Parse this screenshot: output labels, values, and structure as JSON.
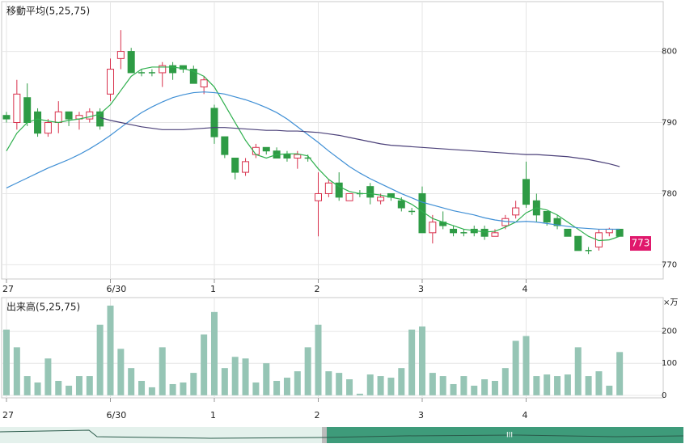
{
  "chart_data": [
    {
      "type": "candlestick",
      "title": "移動平均(5,25,75)",
      "categories": [
        "27",
        null,
        null,
        null,
        null,
        null,
        null,
        null,
        null,
        null,
        "6/30",
        null,
        null,
        null,
        null,
        null,
        null,
        null,
        null,
        null,
        "1",
        null,
        null,
        null,
        null,
        null,
        null,
        null,
        null,
        null,
        "2",
        null,
        null,
        null,
        null,
        null,
        null,
        null,
        null,
        null,
        "3",
        null,
        null,
        null,
        null,
        null,
        null,
        null,
        null,
        null,
        "4",
        null,
        null,
        null,
        null,
        null,
        null,
        null,
        null,
        null
      ],
      "open": [
        791,
        790,
        793.5,
        791.5,
        788.5,
        790,
        791.5,
        790.5,
        790.5,
        791.5,
        794,
        799,
        800,
        797,
        797,
        797,
        798,
        798,
        797.5,
        795,
        792,
        788,
        785,
        783,
        785.5,
        786.5,
        786,
        785.5,
        785,
        785,
        779,
        780,
        781.5,
        779,
        780,
        781,
        779,
        780,
        779,
        777.5,
        780,
        774.5,
        776,
        775,
        774.5,
        775,
        775,
        774,
        775.5,
        777,
        782,
        779,
        777.5,
        776.5,
        775,
        774,
        772,
        772.5,
        774.5,
        775
      ],
      "close": [
        790.5,
        794,
        790,
        788.5,
        790,
        791.5,
        790.5,
        791,
        791.5,
        789.5,
        797.5,
        800,
        797,
        797,
        797,
        798,
        797,
        797.5,
        795.5,
        796,
        788,
        785.5,
        783,
        784.5,
        786.5,
        786,
        785,
        785,
        785.5,
        785,
        780,
        781.5,
        779.5,
        780,
        780,
        779.5,
        779.5,
        779.5,
        778,
        777.5,
        774.5,
        776,
        775.5,
        774.5,
        774.5,
        774.5,
        774,
        774.5,
        776.5,
        778,
        778.5,
        777,
        776,
        775.5,
        774,
        772,
        772,
        774.5,
        775,
        774
      ],
      "high": [
        791.5,
        796,
        795.5,
        792,
        790.5,
        793,
        791.5,
        791.5,
        792,
        792,
        799,
        803,
        800.5,
        797.5,
        797.5,
        798.5,
        798.5,
        798,
        798,
        796.5,
        792.5,
        788,
        785,
        785,
        787,
        786.5,
        786.5,
        786,
        786,
        785.5,
        783,
        782,
        783,
        780,
        780.5,
        781.5,
        780,
        780,
        779.5,
        778,
        781,
        777,
        777.5,
        775.5,
        775,
        775.5,
        775.5,
        775,
        777,
        779,
        784.5,
        780,
        777.5,
        777,
        775,
        774,
        772.5,
        775,
        775.2,
        775
      ],
      "low": [
        790,
        789,
        789.5,
        788,
        788,
        788.5,
        789.5,
        789,
        790,
        789,
        793,
        797.5,
        797,
        796.5,
        796.5,
        795,
        796,
        797,
        795.5,
        794,
        787,
        785,
        782,
        782.5,
        785,
        785.5,
        785,
        784.5,
        783.5,
        784.5,
        774,
        779.5,
        779,
        779,
        779.5,
        778.5,
        778.5,
        779,
        777.5,
        777,
        774.5,
        773,
        775,
        774,
        774,
        774,
        773.5,
        774,
        775,
        776.5,
        778,
        776,
        775.5,
        775,
        774,
        772,
        771.5,
        772,
        774,
        774
      ],
      "up_color": "#d8304c",
      "down_color": "#2e9b45",
      "series": [
        {
          "color": "#2fb04e",
          "values": [
            786,
            788.5,
            790,
            790.5,
            790.2,
            790,
            790.3,
            790.5,
            790.8,
            791.2,
            792.5,
            794.5,
            796.5,
            797.5,
            797.8,
            797.8,
            797.8,
            797.6,
            797.2,
            796.5,
            795,
            792.5,
            790,
            787.5,
            785.5,
            785,
            785.5,
            785.6,
            785.6,
            785.3,
            783.5,
            782,
            781,
            780.3,
            780,
            780,
            779.8,
            779.5,
            779.2,
            778.5,
            777.5,
            776.5,
            776,
            775.5,
            775,
            774.8,
            774.6,
            774.7,
            775.3,
            776,
            777.3,
            778,
            777.7,
            777,
            776,
            775,
            774,
            773.4,
            773.5,
            774
          ]
        },
        {
          "color": "#3f8fd5",
          "values": [
            780.8,
            781.5,
            782.2,
            782.9,
            783.6,
            784.2,
            784.8,
            785.5,
            786.3,
            787.2,
            788.2,
            789.3,
            790.4,
            791.4,
            792.2,
            792.9,
            793.5,
            793.9,
            794.2,
            794.3,
            794.2,
            794,
            793.6,
            793.2,
            792.7,
            792.1,
            791.4,
            790.5,
            789.4,
            788.3,
            787.2,
            786,
            784.9,
            783.8,
            782.9,
            782.1,
            781.4,
            780.7,
            780,
            779.4,
            778.8,
            778.4,
            778,
            777.6,
            777.3,
            777,
            776.6,
            776.3,
            776.1,
            776,
            776.1,
            776,
            775.8,
            775.6,
            775.4,
            775.2,
            775.1,
            775,
            775,
            775
          ]
        },
        {
          "color": "#4b4079",
          "values": [
            null,
            null,
            null,
            null,
            null,
            null,
            null,
            null,
            null,
            790.7,
            790.3,
            790,
            789.7,
            789.4,
            789.2,
            789,
            789,
            789,
            789.1,
            789.2,
            789.3,
            789.3,
            789.2,
            789.1,
            789,
            788.9,
            788.9,
            788.8,
            788.8,
            788.7,
            788.6,
            788.4,
            788.2,
            787.9,
            787.6,
            787.3,
            787,
            786.8,
            786.7,
            786.6,
            786.5,
            786.4,
            786.3,
            786.2,
            786.1,
            786,
            785.9,
            785.8,
            785.7,
            785.6,
            785.5,
            785.5,
            785.4,
            785.3,
            785.2,
            785,
            784.8,
            784.5,
            784.2,
            783.8
          ]
        }
      ],
      "last_price": 773,
      "last_price_color": "#e0186c",
      "ylim": [
        768,
        807
      ],
      "yticks": [
        770,
        780,
        790,
        800
      ],
      "grid": true
    },
    {
      "type": "bar",
      "title": "出来高(5,25,75)",
      "unit": "×万",
      "categories": [
        "27",
        null,
        null,
        null,
        null,
        null,
        null,
        null,
        null,
        null,
        "6/30",
        null,
        null,
        null,
        null,
        null,
        null,
        null,
        null,
        null,
        "1",
        null,
        null,
        null,
        null,
        null,
        null,
        null,
        null,
        null,
        "2",
        null,
        null,
        null,
        null,
        null,
        null,
        null,
        null,
        null,
        "3",
        null,
        null,
        null,
        null,
        null,
        null,
        null,
        null,
        null,
        "4",
        null,
        null,
        null,
        null,
        null,
        null,
        null,
        null,
        null
      ],
      "values": [
        205,
        150,
        60,
        40,
        115,
        45,
        30,
        60,
        60,
        220,
        280,
        145,
        85,
        45,
        25,
        150,
        35,
        40,
        70,
        190,
        260,
        85,
        120,
        115,
        40,
        100,
        45,
        55,
        75,
        150,
        220,
        75,
        70,
        50,
        5,
        65,
        60,
        55,
        85,
        205,
        215,
        70,
        60,
        35,
        60,
        30,
        50,
        45,
        85,
        170,
        185,
        60,
        65,
        60,
        65,
        150,
        60,
        75,
        30,
        135
      ],
      "color": "#96c5b5",
      "ylim": [
        -8,
        305
      ],
      "yticks": [
        0,
        100,
        200
      ],
      "grid": true
    }
  ]
}
